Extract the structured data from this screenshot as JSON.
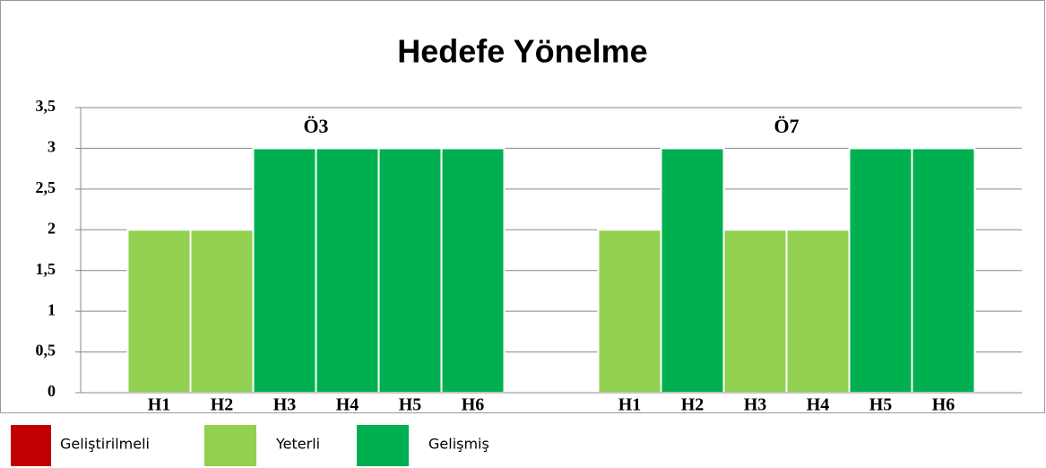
{
  "chart_data": {
    "type": "bar",
    "title": "Hedefe Yönelme",
    "categories": [
      "H1",
      "H2",
      "H3",
      "H4",
      "H5",
      "H6",
      "H1",
      "H2",
      "H3",
      "H4",
      "H5",
      "H6"
    ],
    "groups": [
      {
        "name": "Ö3",
        "size": 6
      },
      {
        "name": "Ö7",
        "size": 6
      }
    ],
    "series": [
      {
        "name": "Geliştirilmeli",
        "color": "#c00000",
        "values": [
          null,
          null,
          null,
          null,
          null,
          null,
          null,
          null,
          null,
          null,
          null,
          null
        ]
      },
      {
        "name": "Yeterli",
        "color": "#92d050",
        "values": [
          2,
          2,
          null,
          null,
          null,
          null,
          2,
          null,
          2,
          2,
          null,
          null
        ]
      },
      {
        "name": "Gelişmiş",
        "color": "#00b050",
        "values": [
          null,
          null,
          3,
          3,
          3,
          3,
          null,
          3,
          null,
          null,
          3,
          3
        ]
      }
    ],
    "ylim": [
      0,
      3.5
    ],
    "yticks": [
      0,
      {
        "value": 0.5,
        "label": "0,5"
      },
      1,
      {
        "value": 1.5,
        "label": "1,5"
      },
      2,
      {
        "value": 2.5,
        "label": "2,5"
      },
      3,
      {
        "value": 3.5,
        "label": "3,5"
      }
    ],
    "grid": true
  }
}
